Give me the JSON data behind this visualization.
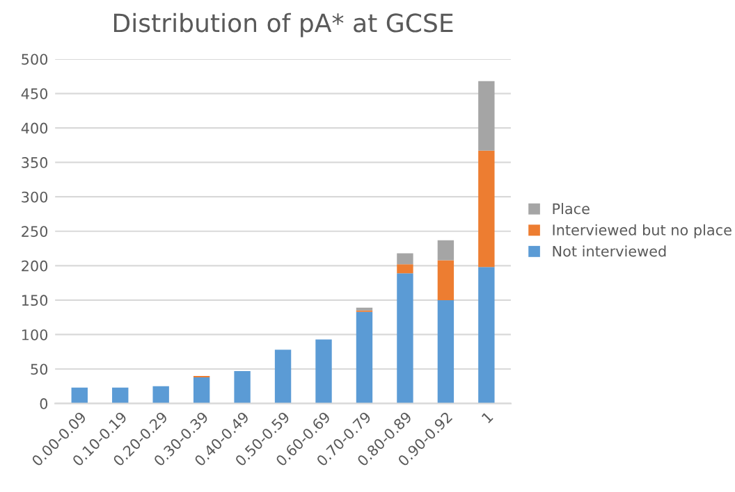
{
  "chart_data": {
    "type": "bar",
    "stacked": true,
    "title": "Distribution of pA* at GCSE",
    "categories": [
      "0.00-0.09",
      "0.10-0.19",
      "0.20-0.29",
      "0.30-0.39",
      "0.40-0.49",
      "0.50-0.59",
      "0.60-0.69",
      "0.70-0.79",
      "0.80-0.89",
      "0.90-0.92",
      "1"
    ],
    "series": [
      {
        "name": "Not interviewed",
        "color": "#5b9bd5",
        "values": [
          23,
          23,
          25,
          38,
          47,
          78,
          93,
          133,
          189,
          150,
          198
        ]
      },
      {
        "name": "Interviewed but no place",
        "color": "#ed7d31",
        "values": [
          0,
          0,
          0,
          2,
          0,
          0,
          0,
          2,
          13,
          58,
          169
        ]
      },
      {
        "name": "Place",
        "color": "#a5a5a5",
        "values": [
          0,
          0,
          0,
          0,
          0,
          0,
          0,
          4,
          16,
          29,
          101
        ]
      }
    ],
    "ylim": [
      0,
      500
    ],
    "yticks": [
      0,
      50,
      100,
      150,
      200,
      250,
      300,
      350,
      400,
      450,
      500
    ],
    "grid": "y",
    "legend": "right"
  }
}
